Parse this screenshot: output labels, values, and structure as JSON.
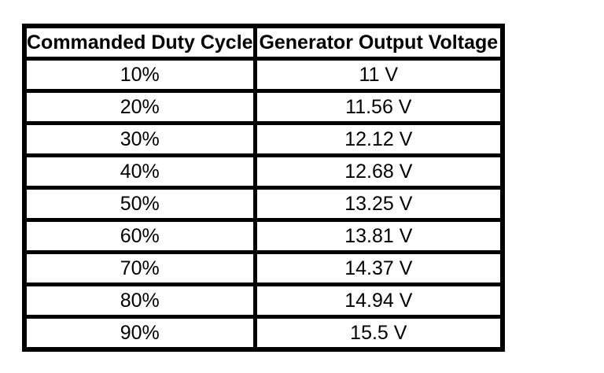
{
  "page": {
    "background_color": "#ffffff",
    "border_color": "#000000"
  },
  "table": {
    "columns": [
      "Commanded Duty Cycle",
      "Generator Output Voltage"
    ],
    "rows": [
      {
        "duty_cycle": "10%",
        "voltage": "11 V"
      },
      {
        "duty_cycle": "20%",
        "voltage": "11.56 V"
      },
      {
        "duty_cycle": "30%",
        "voltage": "12.12 V"
      },
      {
        "duty_cycle": "40%",
        "voltage": "12.68 V"
      },
      {
        "duty_cycle": "50%",
        "voltage": "13.25 V"
      },
      {
        "duty_cycle": "60%",
        "voltage": "13.81 V"
      },
      {
        "duty_cycle": "70%",
        "voltage": "14.37 V"
      },
      {
        "duty_cycle": "80%",
        "voltage": "14.94 V"
      },
      {
        "duty_cycle": "90%",
        "voltage": "15.5 V"
      }
    ]
  },
  "chart_data": {
    "type": "table",
    "columns": [
      "Commanded Duty Cycle",
      "Generator Output Voltage"
    ],
    "duty_cycle_percent": [
      10,
      20,
      30,
      40,
      50,
      60,
      70,
      80,
      90
    ],
    "output_voltage_volts": [
      11,
      11.56,
      12.12,
      12.68,
      13.25,
      13.81,
      14.37,
      14.94,
      15.5
    ],
    "rows": [
      [
        "10%",
        "11 V"
      ],
      [
        "20%",
        "11.56 V"
      ],
      [
        "30%",
        "12.12 V"
      ],
      [
        "40%",
        "12.68 V"
      ],
      [
        "50%",
        "13.25 V"
      ],
      [
        "60%",
        "13.81 V"
      ],
      [
        "70%",
        "14.37 V"
      ],
      [
        "80%",
        "14.94 V"
      ],
      [
        "90%",
        "15.5 V"
      ]
    ]
  }
}
